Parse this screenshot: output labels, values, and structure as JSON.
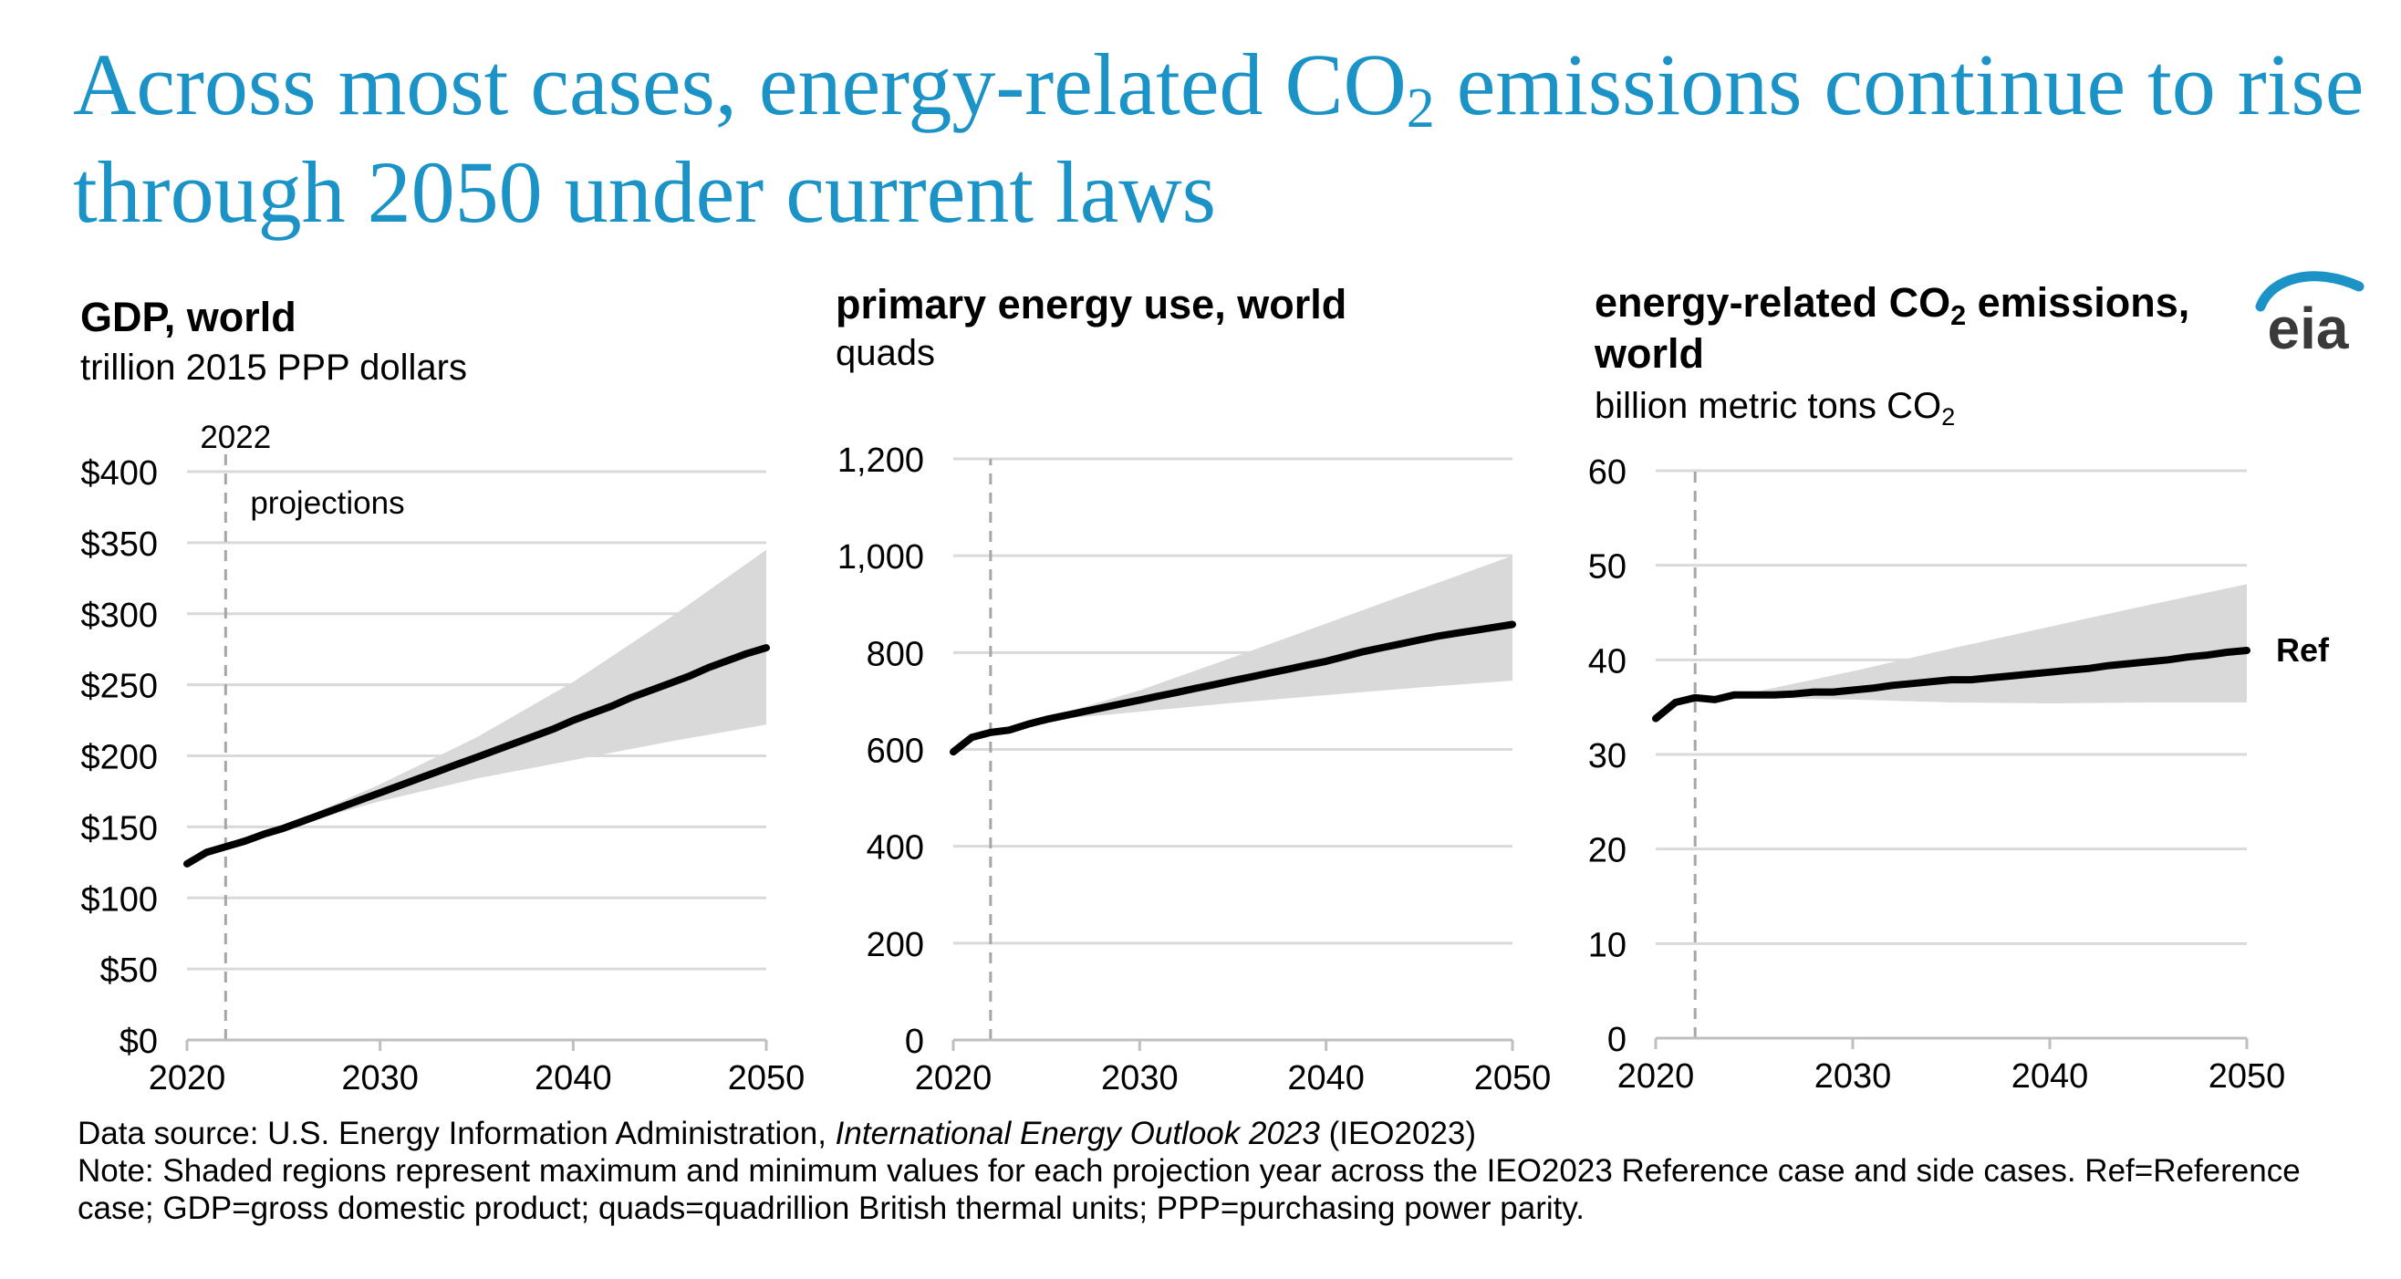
{
  "headline": {
    "part1": "Across most cases, energy-related CO",
    "sub": "2",
    "part2": " emissions continue to rise through 2050 under current laws"
  },
  "logo_text": "eia",
  "colors": {
    "headline": "#1b93c6",
    "band": "#d9d9d9",
    "line": "#000000",
    "grid": "#d9d9d9",
    "marker": "#a6a6a6",
    "logo": "#1b93c6"
  },
  "chart_data": [
    {
      "type": "line",
      "title": "GDP, world",
      "subtitle": "trillion 2015 PPP dollars",
      "ylim": [
        0,
        400
      ],
      "yticks": [
        0,
        50,
        100,
        150,
        200,
        250,
        300,
        350,
        400
      ],
      "ytick_labels": [
        "$0",
        "$50",
        "$100",
        "$150",
        "$200",
        "$250",
        "$300",
        "$350",
        "$400"
      ],
      "xlim": [
        2020,
        2050
      ],
      "xticks": [
        "2020",
        "2030",
        "2040",
        "2050"
      ],
      "grid": true,
      "marker_year": 2022,
      "marker_label": "2022",
      "marker_note": "projections",
      "series": [
        {
          "x": [
            2020,
            2021,
            2022,
            2023,
            2024,
            2025,
            2026,
            2027,
            2028,
            2029,
            2030,
            2031,
            2032,
            2033,
            2034,
            2035,
            2036,
            2037,
            2038,
            2039,
            2040,
            2041,
            2042,
            2043,
            2044,
            2045,
            2046,
            2047,
            2048,
            2049,
            2050
          ],
          "y": [
            124,
            132,
            136,
            140,
            145,
            149,
            154,
            159,
            164,
            169,
            174,
            179,
            184,
            189,
            194,
            199,
            204,
            209,
            214,
            219,
            225,
            230,
            235,
            241,
            246,
            251,
            256,
            262,
            267,
            272,
            276
          ]
        }
      ],
      "band": {
        "x": [
          2020,
          2022,
          2025,
          2030,
          2035,
          2040,
          2045,
          2050
        ],
        "low": [
          124,
          136,
          149,
          168,
          184,
          197,
          210,
          222
        ],
        "high": [
          124,
          136,
          150,
          180,
          213,
          252,
          297,
          345
        ]
      }
    },
    {
      "type": "line",
      "title": "primary energy use, world",
      "subtitle": "quads",
      "ylim": [
        0,
        1200
      ],
      "yticks": [
        0,
        200,
        400,
        600,
        800,
        1000,
        1200
      ],
      "ytick_labels": [
        "0",
        "200",
        "400",
        "600",
        "800",
        "1,000",
        "1,200"
      ],
      "xlim": [
        2020,
        2050
      ],
      "xticks": [
        "2020",
        "2030",
        "2040",
        "2050"
      ],
      "grid": true,
      "marker_year": 2022,
      "series": [
        {
          "x": [
            2020,
            2021,
            2022,
            2023,
            2024,
            2025,
            2026,
            2027,
            2028,
            2029,
            2030,
            2031,
            2032,
            2033,
            2034,
            2035,
            2036,
            2037,
            2038,
            2039,
            2040,
            2041,
            2042,
            2043,
            2044,
            2045,
            2046,
            2047,
            2048,
            2049,
            2050
          ],
          "y": [
            595,
            625,
            635,
            640,
            652,
            662,
            670,
            678,
            686,
            694,
            702,
            710,
            718,
            726,
            734,
            742,
            750,
            758,
            766,
            774,
            782,
            792,
            802,
            810,
            818,
            826,
            834,
            840,
            846,
            852,
            858
          ]
        }
      ],
      "band": {
        "x": [
          2020,
          2022,
          2025,
          2030,
          2035,
          2040,
          2045,
          2050
        ],
        "low": [
          595,
          635,
          660,
          678,
          696,
          712,
          728,
          742
        ],
        "high": [
          595,
          635,
          665,
          722,
          790,
          860,
          930,
          1000
        ]
      }
    },
    {
      "type": "line",
      "title": "energy-related CO",
      "title_sub": "2",
      "title_tail": " emissions,",
      "title_line2": "world",
      "subtitle": "billion metric tons CO",
      "subtitle_sub": "2",
      "ylim": [
        0,
        60
      ],
      "yticks": [
        0,
        10,
        20,
        30,
        40,
        50,
        60
      ],
      "ytick_labels": [
        "0",
        "10",
        "20",
        "30",
        "40",
        "50",
        "60"
      ],
      "xlim": [
        2020,
        2050
      ],
      "xticks": [
        "2020",
        "2030",
        "2040",
        "2050"
      ],
      "grid": true,
      "marker_year": 2022,
      "series": [
        {
          "name": "Ref",
          "x": [
            2020,
            2021,
            2022,
            2023,
            2024,
            2025,
            2026,
            2027,
            2028,
            2029,
            2030,
            2031,
            2032,
            2033,
            2034,
            2035,
            2036,
            2037,
            2038,
            2039,
            2040,
            2041,
            2042,
            2043,
            2044,
            2045,
            2046,
            2047,
            2048,
            2049,
            2050
          ],
          "y": [
            33.8,
            35.5,
            36.0,
            35.8,
            36.3,
            36.3,
            36.3,
            36.4,
            36.6,
            36.6,
            36.8,
            37.0,
            37.3,
            37.5,
            37.7,
            37.9,
            37.9,
            38.1,
            38.3,
            38.5,
            38.7,
            38.9,
            39.1,
            39.4,
            39.6,
            39.8,
            40.0,
            40.3,
            40.5,
            40.8,
            41.0
          ]
        }
      ],
      "band": {
        "x": [
          2020,
          2022,
          2025,
          2030,
          2035,
          2040,
          2045,
          2050
        ],
        "low": [
          33.8,
          36.0,
          36.0,
          35.8,
          35.5,
          35.4,
          35.5,
          35.5
        ],
        "high": [
          33.8,
          36.0,
          36.6,
          38.8,
          41.2,
          43.5,
          45.8,
          48.0
        ]
      }
    }
  ],
  "footer": {
    "source_prefix": "Data source: U.S. Energy Information Administration, ",
    "source_italic": "International Energy Outlook 2023",
    "source_suffix": " (IEO2023)",
    "note": "Note: Shaded regions represent maximum and minimum values for each projection year across the IEO2023 Reference case and side cases. Ref=Reference case; GDP=gross domestic product; quads=quadrillion British thermal units; PPP=purchasing power parity."
  }
}
